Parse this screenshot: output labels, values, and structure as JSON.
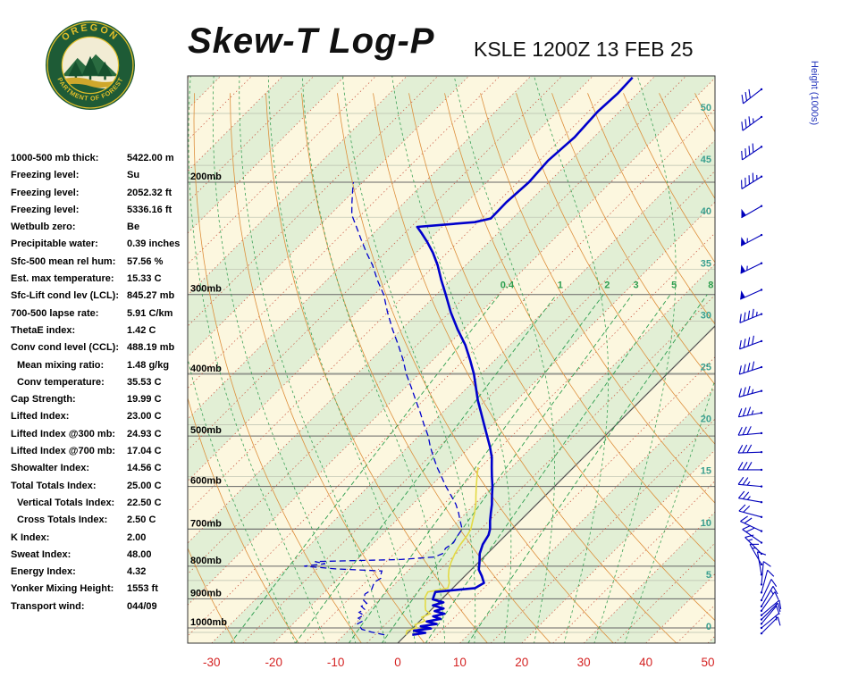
{
  "header": {
    "title": "Skew-T Log-P",
    "station_line": "KSLE 1200Z 13 FEB 25",
    "logo": {
      "top": "OREGON",
      "bottom": "DEPARTMENT OF FORESTRY"
    }
  },
  "stats": {
    "rows": [
      {
        "label": "1000-500 mb thick:",
        "value": "5422.00 m"
      },
      {
        "label": "Freezing level:",
        "value": "Su"
      },
      {
        "label": "Freezing level:",
        "value": "2052.32 ft"
      },
      {
        "label": "Freezing level:",
        "value": "5336.16 ft"
      },
      {
        "label": "Wetbulb zero:",
        "value": "Be"
      },
      {
        "label": "Precipitable water:",
        "value": "0.39 inches"
      },
      {
        "label": "Sfc-500 mean rel hum:",
        "value": "57.56 %"
      },
      {
        "label": "Est. max temperature:",
        "value": "15.33 C"
      },
      {
        "label": "Sfc-Lift cond lev (LCL):",
        "value": "845.27 mb"
      },
      {
        "label": "700-500 lapse rate:",
        "value": "5.91 C/km"
      },
      {
        "label": "ThetaE index:",
        "value": "1.42 C"
      },
      {
        "label": "Conv cond level (CCL):",
        "value": "488.19 mb"
      },
      {
        "label": "Mean mixing ratio:",
        "value": "1.48 g/kg",
        "indent": true
      },
      {
        "label": "Conv temperature:",
        "value": "35.53 C",
        "indent": true
      },
      {
        "label": "Cap Strength:",
        "value": "19.99 C"
      },
      {
        "label": "Lifted Index:",
        "value": "23.00 C"
      },
      {
        "label": "Lifted Index @300 mb:",
        "value": "24.93 C"
      },
      {
        "label": "Lifted Index @700 mb:",
        "value": "17.04 C"
      },
      {
        "label": "Showalter Index:",
        "value": "14.56 C"
      },
      {
        "label": "Total Totals Index:",
        "value": "25.00 C"
      },
      {
        "label": "Vertical Totals Index:",
        "value": "22.50 C",
        "indent": true
      },
      {
        "label": "Cross Totals Index:",
        "value": "2.50 C",
        "indent": true
      },
      {
        "label": "K Index:",
        "value": "2.00"
      },
      {
        "label": "Sweat Index:",
        "value": "48.00"
      },
      {
        "label": "Energy Index:",
        "value": "4.32"
      },
      {
        "label": "Yonker Mixing Height:",
        "value": "1553 ft"
      },
      {
        "label": "Transport wind:",
        "value": "044/09"
      }
    ]
  },
  "chart_data": {
    "type": "skewt-log-p",
    "title": "Skew-T Log-P",
    "station": "KSLE",
    "valid": "1200Z 13 FEB 25",
    "x_axis": {
      "unit": "C",
      "ticks": [
        -30,
        -20,
        -10,
        0,
        10,
        20,
        30,
        40,
        50
      ]
    },
    "pressure_levels_mb": [
      200,
      300,
      400,
      500,
      600,
      700,
      800,
      900,
      1000
    ],
    "pressure_label_suffix": "mb",
    "pressure_range_mb": [
      136,
      1057
    ],
    "height_axis": {
      "title": "Height (1000s)",
      "ticks": [
        50,
        45,
        40,
        35,
        30,
        25,
        20,
        15,
        10,
        5,
        0
      ]
    },
    "isotherm_step_c": 5,
    "highlight_isotherm_c": 0,
    "mixing_ratio_lines_gkg": [
      0.4,
      1,
      2,
      3,
      5,
      8
    ],
    "moist_adiabat_start_temps_c": [
      -20,
      -15,
      -10,
      -5,
      0,
      5,
      10,
      15,
      20,
      25,
      30,
      35
    ],
    "temperature_profile": [
      [
        1025,
        1.0
      ],
      [
        1018,
        2.8
      ],
      [
        1010,
        0.6
      ],
      [
        1002,
        3.0
      ],
      [
        994,
        1.0
      ],
      [
        986,
        3.2
      ],
      [
        977,
        1.2
      ],
      [
        968,
        3.0
      ],
      [
        959,
        1.4
      ],
      [
        950,
        2.8
      ],
      [
        941,
        0.8
      ],
      [
        932,
        1.8
      ],
      [
        922,
        -0.4
      ],
      [
        912,
        0.8
      ],
      [
        902,
        -1.4
      ],
      [
        890,
        -1.8
      ],
      [
        878,
        -2.2
      ],
      [
        866,
        3.6
      ],
      [
        850,
        4.2
      ],
      [
        830,
        2.8
      ],
      [
        810,
        1.2
      ],
      [
        790,
        0.2
      ],
      [
        765,
        -1.2
      ],
      [
        740,
        -2.2
      ],
      [
        715,
        -2.8
      ],
      [
        700,
        -3.5
      ],
      [
        680,
        -4.8
      ],
      [
        660,
        -6.0
      ],
      [
        640,
        -7.2
      ],
      [
        620,
        -8.6
      ],
      [
        600,
        -10.0
      ],
      [
        580,
        -11.6
      ],
      [
        560,
        -13.2
      ],
      [
        540,
        -14.8
      ],
      [
        520,
        -16.8
      ],
      [
        500,
        -19.0
      ],
      [
        480,
        -21.3
      ],
      [
        460,
        -23.7
      ],
      [
        440,
        -26.2
      ],
      [
        420,
        -28.6
      ],
      [
        400,
        -31.1
      ],
      [
        380,
        -34.0
      ],
      [
        360,
        -37.2
      ],
      [
        340,
        -41.0
      ],
      [
        320,
        -44.8
      ],
      [
        300,
        -48.5
      ],
      [
        285,
        -51.5
      ],
      [
        270,
        -54.5
      ],
      [
        258,
        -57.3
      ],
      [
        248,
        -60.0
      ],
      [
        240,
        -62.4
      ],
      [
        235,
        -64.0
      ],
      [
        231,
        -55.5
      ],
      [
        228,
        -53.5
      ],
      [
        215,
        -53.6
      ],
      [
        200,
        -53.2
      ],
      [
        185,
        -53.6
      ],
      [
        170,
        -53.1
      ],
      [
        155,
        -53.5
      ],
      [
        145,
        -53.2
      ],
      [
        137,
        -53.4
      ]
    ],
    "dewpoint_profile": [
      [
        1025,
        -3.5
      ],
      [
        1015,
        -6.0
      ],
      [
        1005,
        -8.0
      ],
      [
        995,
        -8.8
      ],
      [
        985,
        -9.6
      ],
      [
        975,
        -9.2
      ],
      [
        965,
        -10.4
      ],
      [
        955,
        -10.0
      ],
      [
        945,
        -11.2
      ],
      [
        935,
        -10.8
      ],
      [
        925,
        -11.8
      ],
      [
        915,
        -11.4
      ],
      [
        905,
        -12.4
      ],
      [
        895,
        -12.8
      ],
      [
        885,
        -13.2
      ],
      [
        872,
        -12.8
      ],
      [
        860,
        -13.2
      ],
      [
        848,
        -13.6
      ],
      [
        836,
        -13.2
      ],
      [
        824,
        -13.8
      ],
      [
        814,
        -14.2
      ],
      [
        808,
        -22.0
      ],
      [
        800,
        -27.5
      ],
      [
        793,
        -24.5
      ],
      [
        787,
        -26.5
      ],
      [
        781,
        -13.0
      ],
      [
        774,
        -8.0
      ],
      [
        765,
        -7.2
      ],
      [
        750,
        -7.6
      ],
      [
        735,
        -7.2
      ],
      [
        720,
        -7.6
      ],
      [
        700,
        -8.0
      ],
      [
        680,
        -9.6
      ],
      [
        660,
        -11.2
      ],
      [
        640,
        -13.0
      ],
      [
        620,
        -15.2
      ],
      [
        600,
        -17.5
      ],
      [
        580,
        -19.7
      ],
      [
        560,
        -22.0
      ],
      [
        540,
        -24.2
      ],
      [
        520,
        -26.4
      ],
      [
        500,
        -28.5
      ],
      [
        480,
        -31.0
      ],
      [
        460,
        -33.5
      ],
      [
        440,
        -36.2
      ],
      [
        420,
        -39.0
      ],
      [
        400,
        -42.0
      ],
      [
        380,
        -44.8
      ],
      [
        360,
        -48.0
      ],
      [
        340,
        -51.5
      ],
      [
        320,
        -55.0
      ],
      [
        300,
        -58.5
      ],
      [
        285,
        -61.8
      ],
      [
        270,
        -65.0
      ],
      [
        258,
        -68.0
      ],
      [
        246,
        -71.0
      ],
      [
        235,
        -73.8
      ],
      [
        225,
        -76.5
      ],
      [
        215,
        -78.5
      ],
      [
        205,
        -80.5
      ],
      [
        200,
        -81.5
      ]
    ],
    "wetbulb_profile": [
      [
        1025,
        0.0
      ],
      [
        1010,
        -0.5
      ],
      [
        1000,
        0.6
      ],
      [
        988,
        -0.2
      ],
      [
        975,
        0.8
      ],
      [
        962,
        -0.3
      ],
      [
        950,
        0.5
      ],
      [
        938,
        -0.8
      ],
      [
        925,
        -1.5
      ],
      [
        910,
        -2.2
      ],
      [
        895,
        -3.0
      ],
      [
        878,
        -3.4
      ],
      [
        866,
        -0.8
      ],
      [
        850,
        -1.4
      ],
      [
        830,
        -2.6
      ],
      [
        810,
        -3.6
      ],
      [
        790,
        -4.4
      ],
      [
        765,
        -5.2
      ],
      [
        740,
        -5.8
      ],
      [
        715,
        -6.2
      ],
      [
        700,
        -6.6
      ],
      [
        680,
        -7.6
      ],
      [
        660,
        -8.6
      ],
      [
        640,
        -9.8
      ],
      [
        620,
        -11.2
      ],
      [
        600,
        -12.6
      ],
      [
        580,
        -14.0
      ],
      [
        560,
        -15.4
      ]
    ],
    "wind_barbs": [
      {
        "p": 1020,
        "dir": 45,
        "spd": 9
      },
      {
        "p": 1000,
        "dir": 50,
        "spd": 5
      },
      {
        "p": 985,
        "dir": 40,
        "spd": 10
      },
      {
        "p": 970,
        "dir": 45,
        "spd": 10
      },
      {
        "p": 955,
        "dir": 50,
        "spd": 15
      },
      {
        "p": 940,
        "dir": 35,
        "spd": 10
      },
      {
        "p": 925,
        "dir": 30,
        "spd": 15
      },
      {
        "p": 905,
        "dir": 25,
        "spd": 10
      },
      {
        "p": 880,
        "dir": 15,
        "spd": 10
      },
      {
        "p": 855,
        "dir": 5,
        "spd": 10
      },
      {
        "p": 825,
        "dir": 350,
        "spd": 10
      },
      {
        "p": 795,
        "dir": 330,
        "spd": 15
      },
      {
        "p": 765,
        "dir": 315,
        "spd": 15
      },
      {
        "p": 735,
        "dir": 305,
        "spd": 20
      },
      {
        "p": 705,
        "dir": 295,
        "spd": 20
      },
      {
        "p": 670,
        "dir": 285,
        "spd": 20
      },
      {
        "p": 635,
        "dir": 280,
        "spd": 25
      },
      {
        "p": 600,
        "dir": 275,
        "spd": 25
      },
      {
        "p": 565,
        "dir": 270,
        "spd": 30
      },
      {
        "p": 530,
        "dir": 268,
        "spd": 30
      },
      {
        "p": 495,
        "dir": 265,
        "spd": 30
      },
      {
        "p": 460,
        "dir": 260,
        "spd": 35
      },
      {
        "p": 425,
        "dir": 255,
        "spd": 35
      },
      {
        "p": 390,
        "dir": 252,
        "spd": 40
      },
      {
        "p": 355,
        "dir": 250,
        "spd": 40
      },
      {
        "p": 322,
        "dir": 248,
        "spd": 45
      },
      {
        "p": 295,
        "dir": 246,
        "spd": 50
      },
      {
        "p": 268,
        "dir": 244,
        "spd": 55
      },
      {
        "p": 242,
        "dir": 242,
        "spd": 55
      },
      {
        "p": 218,
        "dir": 240,
        "spd": 50
      },
      {
        "p": 196,
        "dir": 238,
        "spd": 45
      },
      {
        "p": 176,
        "dir": 236,
        "spd": 40
      },
      {
        "p": 158,
        "dir": 234,
        "spd": 35
      },
      {
        "p": 143,
        "dir": 232,
        "spd": 30
      }
    ],
    "colors": {
      "band_yellow": "#fcf7df",
      "band_green": "#e2efd5",
      "isotherm": "#c8503c",
      "isotherm_highlight": "#555555",
      "dry_adiabat": "#dd8f3c",
      "moist_adiabat": "#3aa055",
      "mixing_ratio": "#2e9e4f",
      "isobar": "#666666",
      "height_line": "#b9bfae",
      "height_labels": "#3a9f8f",
      "temperature": "#0000cc",
      "dewpoint": "#0000cc",
      "wetbulb": "#e3da45",
      "wind": "#0000bb",
      "axis_red": "#d42222",
      "pressure_label": "#000000",
      "height_title": "#2233bb",
      "logo_green": "#1e5b36",
      "logo_yellow": "#e3bf2a"
    }
  }
}
